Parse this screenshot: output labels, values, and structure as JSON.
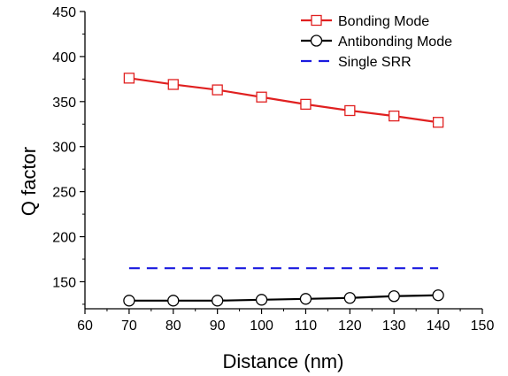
{
  "chart_data": {
    "type": "line",
    "title": "",
    "xlabel": "Distance (nm)",
    "ylabel": "Q factor",
    "xlim": [
      60,
      150
    ],
    "ylim": [
      120,
      450
    ],
    "xticks": [
      60,
      70,
      80,
      90,
      100,
      110,
      120,
      130,
      140,
      150
    ],
    "yticks": [
      150,
      200,
      250,
      300,
      350,
      400,
      450
    ],
    "grid": false,
    "legend_position": "top-right",
    "x": [
      70,
      80,
      90,
      100,
      110,
      120,
      130,
      140
    ],
    "series": [
      {
        "name": "Bonding Mode",
        "values": [
          376,
          369,
          363,
          355,
          347,
          340,
          334,
          327
        ],
        "color": "#e02020",
        "marker": "square-open",
        "line": "solid"
      },
      {
        "name": "Antibonding Mode",
        "values": [
          129,
          129,
          129,
          130,
          131,
          132,
          134,
          135
        ],
        "color": "#000000",
        "marker": "circle-open",
        "line": "solid"
      },
      {
        "name": "Single SRR",
        "values": [
          165,
          165,
          165,
          165,
          165,
          165,
          165,
          165
        ],
        "color": "#1a1adf",
        "marker": "none",
        "line": "dashed"
      }
    ]
  }
}
